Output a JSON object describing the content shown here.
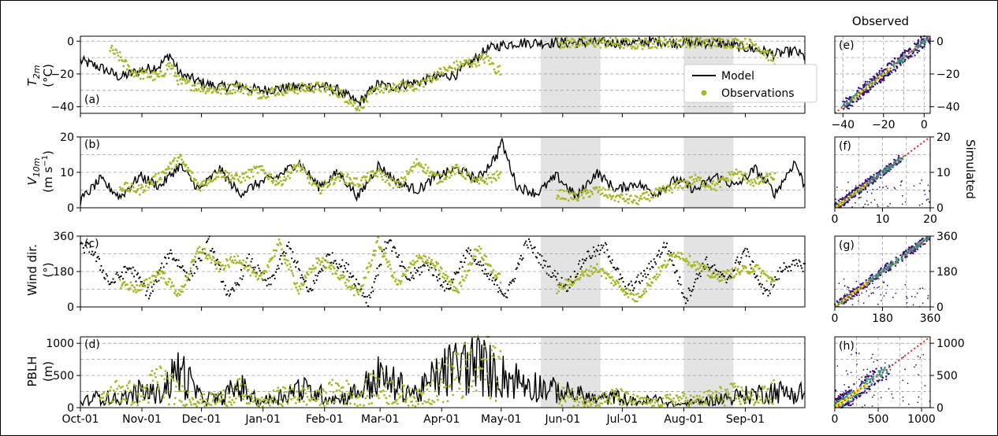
{
  "colors": {
    "model": "#000000",
    "observations": "#a6b82a",
    "shade": "#e3e3e3",
    "one_to_one": "#e8251f",
    "density_low": "#3b0f70",
    "density_mid": "#2a9d8f",
    "density_high": "#f3e61d"
  },
  "labels": {
    "observed": "Observed",
    "simulated": "Simulated",
    "legend_model": "Model",
    "legend_obs": "Observations",
    "ylabel_a_main": "T",
    "ylabel_a_sub": "2m",
    "ylabel_a_unit": "(°C)",
    "ylabel_b_main": "V",
    "ylabel_b_sub": "10m",
    "ylabel_b_unit_1": "(m s",
    "ylabel_b_unit_exp": "−1",
    "ylabel_b_unit_2": ")",
    "ylabel_c_1": "Wind dir.",
    "ylabel_c_2": "(°)",
    "ylabel_d_1": "PBLH",
    "ylabel_d_2": "(m)"
  },
  "chart_data": [
    {
      "type": "line",
      "panel": "(a)",
      "ylim": [
        -44,
        3
      ],
      "yticks": [
        0,
        -20,
        -40
      ],
      "grid_y": [
        0,
        -10,
        -20,
        -30,
        -40
      ],
      "legend": "bottom-right",
      "x_dates": [
        "Oct-01",
        "Nov-01",
        "Dec-01",
        "Jan-01",
        "Feb-01",
        "Mar-01",
        "Apr-01",
        "May-01",
        "Jun-01",
        "Jul-01",
        "Aug-01",
        "Sep-01"
      ],
      "shaded_periods": [
        [
          "May-20",
          "Jun-19"
        ],
        [
          "Aug-01",
          "Aug-25"
        ]
      ],
      "series": [
        {
          "name": "Model",
          "kind": "line",
          "x_days": [
            0,
            10,
            20,
            30,
            40,
            45,
            50,
            60,
            70,
            80,
            90,
            100,
            110,
            120,
            130,
            140,
            145,
            150,
            155,
            160,
            170,
            180,
            190,
            200,
            205,
            210,
            215,
            220,
            230,
            240,
            250,
            260,
            270,
            280,
            290,
            300,
            310,
            320,
            330,
            340,
            350,
            360,
            365
          ],
          "values": [
            -12,
            -16,
            -22,
            -18,
            -15,
            -8,
            -20,
            -25,
            -28,
            -27,
            -30,
            -29,
            -28,
            -27,
            -30,
            -38,
            -32,
            -26,
            -28,
            -27,
            -25,
            -22,
            -20,
            -10,
            -5,
            -3,
            -2,
            -1,
            -1,
            -1,
            -1,
            -1,
            -1,
            -1,
            0,
            -1,
            -1,
            -1,
            -3,
            -5,
            -8,
            -6,
            -10
          ]
        },
        {
          "name": "Observations",
          "kind": "scatter",
          "x_days": [
            15,
            20,
            25,
            30,
            40,
            45,
            50,
            60,
            70,
            80,
            90,
            100,
            110,
            120,
            130,
            140,
            145,
            150,
            155,
            160,
            170,
            180,
            190,
            200,
            205,
            210,
            215,
            220,
            230,
            240,
            250,
            260,
            270,
            280,
            290,
            300,
            310,
            320,
            330,
            340,
            350
          ],
          "values": [
            -5,
            -10,
            -18,
            -20,
            -22,
            -14,
            -25,
            -28,
            -30,
            -28,
            -32,
            -30,
            -29,
            -28,
            -31,
            -40,
            -35,
            -28,
            -30,
            -28,
            -27,
            -20,
            -15,
            -12,
            -10,
            -18,
            -16,
            -15,
            -1,
            -1,
            -1,
            -1,
            -1,
            -2,
            -1,
            0,
            -1,
            -1,
            -1,
            -2,
            -12
          ]
        }
      ]
    },
    {
      "type": "line",
      "panel": "(b)",
      "ylim": [
        0,
        20
      ],
      "yticks": [
        0,
        10,
        20
      ],
      "grid_y": [
        5,
        10,
        15
      ],
      "series": [
        {
          "name": "Model",
          "kind": "line",
          "x_days": [
            0,
            10,
            20,
            30,
            40,
            50,
            60,
            70,
            80,
            90,
            100,
            110,
            120,
            130,
            140,
            150,
            160,
            170,
            180,
            190,
            200,
            210,
            212,
            220,
            230,
            240,
            250,
            260,
            270,
            280,
            290,
            300,
            310,
            320,
            330,
            340,
            350,
            360,
            365
          ],
          "values": [
            2,
            8,
            3,
            9,
            6,
            12,
            5,
            11,
            4,
            7,
            9,
            13,
            6,
            10,
            3,
            12,
            7,
            5,
            9,
            11,
            8,
            15,
            19,
            6,
            4,
            9,
            3,
            10,
            5,
            7,
            4,
            8,
            5,
            9,
            6,
            11,
            4,
            13,
            6
          ]
        },
        {
          "name": "Observations",
          "kind": "scatter",
          "x_days": [
            20,
            30,
            40,
            50,
            60,
            70,
            80,
            90,
            100,
            110,
            120,
            130,
            140,
            150,
            160,
            170,
            180,
            190,
            200,
            210,
            240,
            250,
            260,
            270,
            280,
            290,
            300,
            310,
            320,
            330,
            340,
            350
          ],
          "values": [
            6,
            5,
            9,
            14,
            6,
            10,
            8,
            11,
            7,
            12,
            5,
            9,
            7,
            10,
            6,
            13,
            8,
            11,
            7,
            9,
            4,
            3,
            5,
            3,
            2,
            4,
            6,
            8,
            6,
            10,
            7,
            9
          ]
        }
      ]
    },
    {
      "type": "scatter",
      "panel": "(c)",
      "ylim": [
        0,
        360
      ],
      "yticks": [
        0,
        180,
        360
      ],
      "grid_y": [
        90,
        180,
        270
      ],
      "series": [
        {
          "name": "Model",
          "kind": "scatter",
          "x_days": [
            5,
            15,
            25,
            35,
            45,
            55,
            65,
            75,
            85,
            95,
            105,
            115,
            125,
            135,
            145,
            155,
            165,
            175,
            185,
            195,
            205,
            215,
            225,
            235,
            245,
            255,
            265,
            275,
            285,
            295,
            305,
            315,
            325,
            335,
            345,
            355
          ],
          "values": [
            300,
            120,
            200,
            60,
            280,
            150,
            330,
            40,
            240,
            110,
            310,
            70,
            260,
            190,
            30,
            350,
            140,
            220,
            90,
            280,
            160,
            60,
            330,
            200,
            100,
            260,
            300,
            80,
            170,
            320,
            40,
            230,
            130,
            290,
            60,
            210
          ]
        },
        {
          "name": "Observations",
          "kind": "scatter",
          "x_days": [
            20,
            30,
            40,
            50,
            60,
            70,
            80,
            90,
            100,
            110,
            120,
            130,
            140,
            150,
            160,
            170,
            180,
            190,
            200,
            210,
            240,
            260,
            280,
            300,
            320,
            340,
            350
          ],
          "values": [
            120,
            90,
            180,
            60,
            300,
            200,
            250,
            130,
            320,
            90,
            240,
            170,
            60,
            330,
            110,
            260,
            200,
            80,
            300,
            150,
            90,
            200,
            40,
            280,
            150,
            200,
            120
          ]
        }
      ]
    },
    {
      "type": "line",
      "panel": "(d)",
      "ylim": [
        0,
        1100
      ],
      "yticks": [
        0,
        500,
        1000
      ],
      "grid_y": [
        250,
        500,
        750,
        1000
      ],
      "series": [
        {
          "name": "Model",
          "kind": "line",
          "x_days": [
            0,
            10,
            20,
            30,
            40,
            50,
            60,
            70,
            80,
            90,
            100,
            110,
            120,
            130,
            140,
            150,
            160,
            170,
            180,
            190,
            200,
            210,
            220,
            230,
            240,
            250,
            260,
            270,
            280,
            290,
            300,
            310,
            320,
            330,
            340,
            350,
            360,
            365
          ],
          "values": [
            100,
            200,
            150,
            300,
            250,
            700,
            200,
            150,
            400,
            100,
            200,
            350,
            250,
            150,
            300,
            550,
            400,
            250,
            600,
            750,
            800,
            600,
            500,
            400,
            300,
            250,
            150,
            200,
            100,
            150,
            50,
            100,
            150,
            200,
            250,
            300,
            250,
            300
          ]
        },
        {
          "name": "Observations",
          "kind": "scatter",
          "x_days": [
            10,
            20,
            30,
            40,
            50,
            60,
            70,
            80,
            90,
            100,
            110,
            120,
            130,
            140,
            150,
            160,
            170,
            180,
            190,
            200,
            210,
            220,
            230,
            240,
            250,
            260,
            270,
            280,
            290,
            300,
            310,
            320,
            330,
            340,
            350
          ],
          "values": [
            150,
            400,
            250,
            600,
            300,
            150,
            200,
            350,
            100,
            250,
            300,
            200,
            400,
            250,
            500,
            300,
            200,
            550,
            700,
            900,
            1000,
            400,
            700,
            300,
            200,
            150,
            250,
            150,
            100,
            200,
            150,
            250,
            300,
            200,
            350
          ]
        }
      ]
    },
    {
      "type": "heatmap",
      "panel": "(e)",
      "xlim": [
        -44,
        3
      ],
      "ylim": [
        -44,
        3
      ],
      "xticks": [
        -40,
        -20,
        0
      ],
      "yticks": [
        0,
        -20,
        -40
      ],
      "grid": [
        -40,
        -30,
        -20,
        -10,
        0
      ]
    },
    {
      "type": "heatmap",
      "panel": "(f)",
      "xlim": [
        0,
        20
      ],
      "ylim": [
        0,
        20
      ],
      "xticks": [
        0,
        10,
        20
      ],
      "yticks": [
        0,
        10,
        20
      ],
      "grid": [
        5,
        10,
        15
      ]
    },
    {
      "type": "heatmap",
      "panel": "(g)",
      "xlim": [
        0,
        360
      ],
      "ylim": [
        0,
        360
      ],
      "xticks": [
        0,
        180,
        360
      ],
      "yticks": [
        0,
        180,
        360
      ],
      "grid": [
        90,
        180,
        270
      ]
    },
    {
      "type": "heatmap",
      "panel": "(h)",
      "xlim": [
        0,
        1100
      ],
      "ylim": [
        0,
        1100
      ],
      "xticks": [
        0,
        500,
        1000
      ],
      "yticks": [
        0,
        500,
        1000
      ],
      "grid": [
        250,
        500,
        750,
        1000
      ]
    }
  ]
}
